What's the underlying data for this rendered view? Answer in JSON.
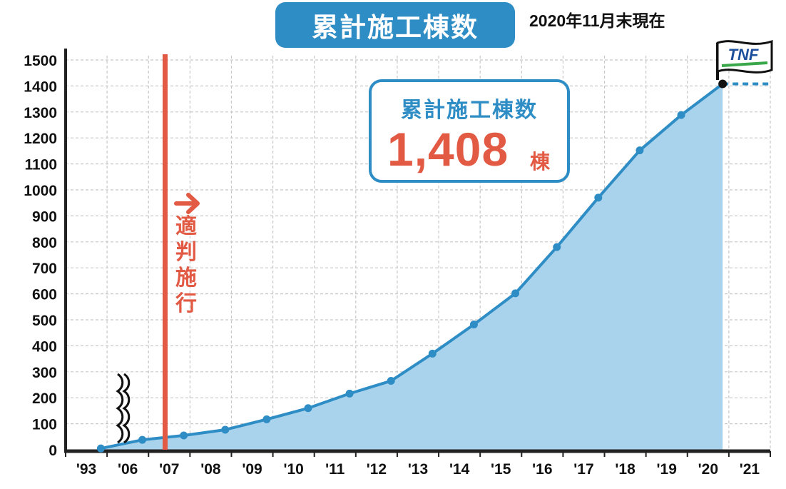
{
  "title": "累計施工棟数",
  "as_of": "2020年11月末現在",
  "callout": {
    "label": "累計施工棟数",
    "value": "1,408",
    "unit": "棟"
  },
  "annotation": {
    "chars": [
      "適",
      "判",
      "施",
      "行"
    ],
    "color": "#e25a43",
    "x_position": "'07"
  },
  "logo": {
    "text": "TNF"
  },
  "colors": {
    "line": "#2f8dc5",
    "fill": "#a9d3ec",
    "accent": "#e25a43",
    "grid": "#c8c8c8",
    "axis": "#222222"
  },
  "chart_data": {
    "type": "area",
    "title": "累計施工棟数",
    "categories": [
      "'93",
      "'06",
      "'07",
      "'08",
      "'09",
      "'10",
      "'11",
      "'12",
      "'13",
      "'14",
      "'15",
      "'16",
      "'17",
      "'18",
      "'19",
      "'20",
      "'21"
    ],
    "x_axis_break": "between '93 and '06",
    "y_ticks": [
      0,
      100,
      200,
      300,
      400,
      500,
      600,
      700,
      800,
      900,
      1000,
      1100,
      1200,
      1300,
      1400,
      1500
    ],
    "ylim": [
      0,
      1500
    ],
    "grid": true,
    "series": [
      {
        "points": [
          {
            "x": 0.85,
            "y": 5
          },
          {
            "x": 1.85,
            "y": 38
          },
          {
            "x": 2.85,
            "y": 55
          },
          {
            "x": 3.85,
            "y": 77
          },
          {
            "x": 4.85,
            "y": 117
          },
          {
            "x": 5.85,
            "y": 160
          },
          {
            "x": 6.85,
            "y": 216
          },
          {
            "x": 7.85,
            "y": 265
          },
          {
            "x": 8.85,
            "y": 370
          },
          {
            "x": 9.85,
            "y": 482
          },
          {
            "x": 10.85,
            "y": 602
          },
          {
            "x": 11.85,
            "y": 780
          },
          {
            "x": 12.85,
            "y": 970
          },
          {
            "x": 13.85,
            "y": 1152
          },
          {
            "x": 14.85,
            "y": 1288
          },
          {
            "x": 15.85,
            "y": 1408
          }
        ]
      }
    ],
    "reference_value": 1408
  }
}
